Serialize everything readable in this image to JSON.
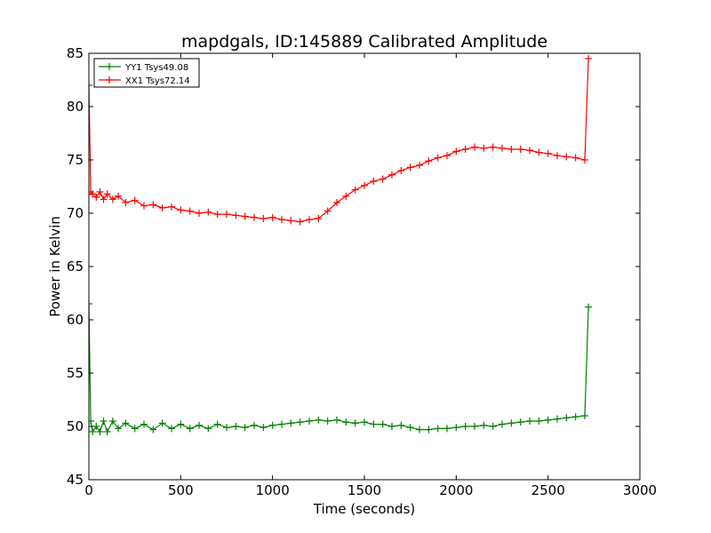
{
  "chart_data": {
    "type": "line",
    "title": "mapdgals, ID:145889 Calibrated Amplitude",
    "xlabel": "Time (seconds)",
    "ylabel": "Power in Kelvin",
    "xlim": [
      0,
      3000
    ],
    "ylim": [
      45,
      85
    ],
    "xticks": [
      0,
      500,
      1000,
      1500,
      2000,
      2500,
      3000
    ],
    "yticks": [
      45,
      50,
      55,
      60,
      65,
      70,
      75,
      80,
      85
    ],
    "legend_position": "top-left",
    "series": [
      {
        "name": "YY1 Tsys49.08",
        "color": "#008000",
        "x": [
          0,
          10,
          20,
          40,
          60,
          80,
          100,
          130,
          160,
          200,
          250,
          300,
          350,
          400,
          450,
          500,
          550,
          600,
          650,
          700,
          750,
          800,
          850,
          900,
          950,
          1000,
          1050,
          1100,
          1150,
          1200,
          1250,
          1300,
          1350,
          1400,
          1450,
          1500,
          1550,
          1600,
          1650,
          1700,
          1750,
          1800,
          1850,
          1900,
          1950,
          2000,
          2050,
          2100,
          2150,
          2200,
          2250,
          2300,
          2350,
          2400,
          2450,
          2500,
          2550,
          2600,
          2650,
          2700,
          2720
        ],
        "values": [
          61.5,
          50.5,
          49.5,
          50.0,
          49.5,
          50.5,
          49.5,
          50.5,
          49.8,
          50.3,
          49.8,
          50.2,
          49.7,
          50.3,
          49.8,
          50.2,
          49.8,
          50.1,
          49.8,
          50.2,
          49.9,
          50.0,
          49.9,
          50.1,
          49.9,
          50.1,
          50.2,
          50.3,
          50.4,
          50.5,
          50.6,
          50.5,
          50.6,
          50.4,
          50.3,
          50.4,
          50.2,
          50.2,
          50.0,
          50.1,
          49.9,
          49.7,
          49.7,
          49.8,
          49.8,
          49.9,
          50.0,
          50.0,
          50.1,
          50.0,
          50.2,
          50.3,
          50.4,
          50.5,
          50.5,
          50.6,
          50.7,
          50.8,
          50.9,
          51.0,
          61.2
        ]
      },
      {
        "name": "XX1 Tsys72.14",
        "color": "#ff0000",
        "x": [
          0,
          10,
          20,
          40,
          60,
          80,
          100,
          130,
          160,
          200,
          250,
          300,
          350,
          400,
          450,
          500,
          550,
          600,
          650,
          700,
          750,
          800,
          850,
          900,
          950,
          1000,
          1050,
          1100,
          1150,
          1200,
          1250,
          1300,
          1350,
          1400,
          1450,
          1500,
          1550,
          1600,
          1650,
          1700,
          1750,
          1800,
          1850,
          1900,
          1950,
          2000,
          2050,
          2100,
          2150,
          2200,
          2250,
          2300,
          2350,
          2400,
          2450,
          2500,
          2550,
          2600,
          2650,
          2700,
          2720
        ],
        "values": [
          82.0,
          72.0,
          71.8,
          71.5,
          72.0,
          71.3,
          71.8,
          71.3,
          71.6,
          71.0,
          71.2,
          70.7,
          70.8,
          70.5,
          70.6,
          70.3,
          70.2,
          70.0,
          70.1,
          69.9,
          69.9,
          69.8,
          69.7,
          69.6,
          69.5,
          69.6,
          69.4,
          69.3,
          69.2,
          69.4,
          69.5,
          70.2,
          71.0,
          71.6,
          72.2,
          72.6,
          73.0,
          73.2,
          73.6,
          74.0,
          74.3,
          74.5,
          74.9,
          75.2,
          75.4,
          75.8,
          76.0,
          76.2,
          76.1,
          76.2,
          76.1,
          76.0,
          76.0,
          75.9,
          75.7,
          75.6,
          75.4,
          75.3,
          75.2,
          75.0,
          84.5
        ]
      }
    ]
  }
}
